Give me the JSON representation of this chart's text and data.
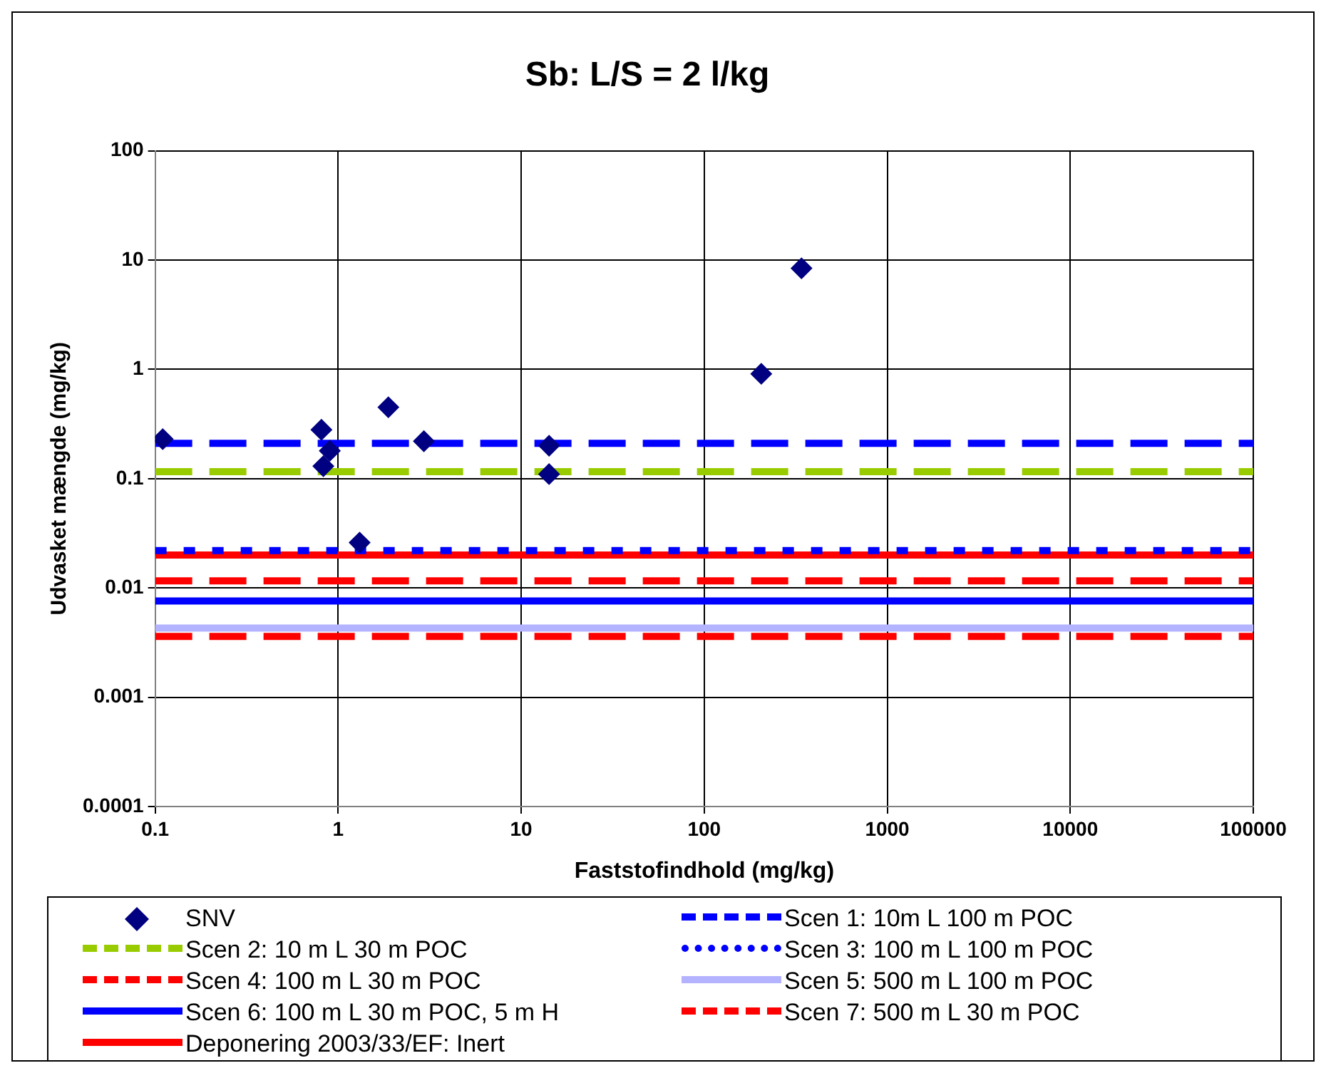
{
  "chart_data": {
    "type": "scatter",
    "title": "Sb: L/S = 2 l/kg",
    "xlabel": "Faststofindhold (mg/kg)",
    "ylabel": "Udvasket mængde (mg/kg)",
    "log": "xy",
    "grid": true,
    "legend": "bottom",
    "xlim": [
      0.1,
      100000
    ],
    "xticks": [
      0.1,
      1,
      10,
      100,
      1000,
      10000,
      100000
    ],
    "ylim": [
      0.0001,
      100
    ],
    "yticks": [
      0.0001,
      0.001,
      0.01,
      0.1,
      1,
      10,
      100
    ],
    "series": [
      {
        "name": "SNV",
        "type": "scatter",
        "marker": "diamond",
        "color": "#000080",
        "x": [
          0.11,
          0.81,
          0.9,
          0.83,
          1.88,
          2.94,
          1.31,
          14.2,
          14.2,
          205,
          340
        ],
        "values": [
          0.23,
          0.28,
          0.18,
          0.13,
          0.45,
          0.22,
          0.026,
          0.2,
          0.11,
          0.91,
          8.4
        ]
      },
      {
        "name": "Scen 1: 10m L 100 m POC",
        "type": "line",
        "marker": "none",
        "line_style": "dashed",
        "color": "#0000ff",
        "x": [
          0.1,
          100000
        ],
        "values": [
          0.21,
          0.21
        ]
      },
      {
        "name": "Scen 2: 10 m L 30 m POC",
        "type": "line",
        "marker": "none",
        "line_style": "dashed",
        "color": "#99cc00",
        "x": [
          0.1,
          100000
        ],
        "values": [
          0.116,
          0.116
        ]
      },
      {
        "name": "Scen 3: 100 m L 100 m POC",
        "type": "line",
        "marker": "none",
        "line_style": "dotted",
        "color": "#0000ff",
        "x": [
          0.1,
          100000
        ],
        "values": [
          0.022,
          0.022
        ]
      },
      {
        "name": "Scen 4: 100 m L 30 m POC",
        "type": "line",
        "marker": "none",
        "line_style": "dashed",
        "color": "#ff0000",
        "x": [
          0.1,
          100000
        ],
        "values": [
          0.0116,
          0.0116
        ]
      },
      {
        "name": "Scen 5: 500 m L 100 m POC",
        "type": "line",
        "marker": "none",
        "line_style": "solid",
        "color": "#b3b3ff",
        "x": [
          0.1,
          100000
        ],
        "values": [
          0.0043,
          0.0043
        ]
      },
      {
        "name": "Scen 6: 100 m L 30 m POC, 5 m H",
        "type": "line",
        "marker": "none",
        "line_style": "solid",
        "color": "#0000ff",
        "x": [
          0.1,
          100000
        ],
        "values": [
          0.0076,
          0.0076
        ]
      },
      {
        "name": "Scen 7: 500 m L 30 m POC",
        "type": "line",
        "marker": "none",
        "line_style": "dashed",
        "color": "#ff0000",
        "x": [
          0.1,
          100000
        ],
        "values": [
          0.0036,
          0.0036
        ]
      },
      {
        "name": "Deponering 2003/33/EF: Inert",
        "type": "line",
        "marker": "none",
        "line_style": "solid",
        "color": "#ff0000",
        "x": [
          0.1,
          100000
        ],
        "values": [
          0.02,
          0.02
        ]
      }
    ]
  }
}
